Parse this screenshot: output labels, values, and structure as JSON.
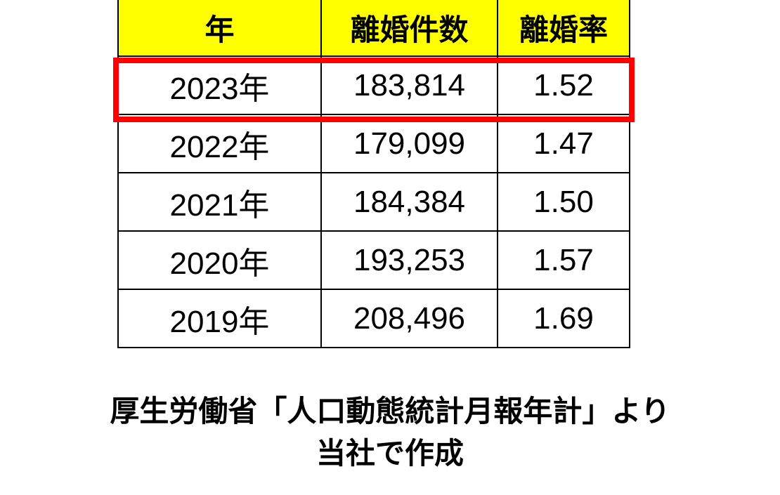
{
  "chart_data": {
    "type": "table",
    "columns": [
      "年",
      "離婚件数",
      "離婚率"
    ],
    "rows": [
      [
        "2023年",
        "183,814",
        "1.52"
      ],
      [
        "2022年",
        "179,099",
        "1.47"
      ],
      [
        "2021年",
        "184,384",
        "1.50"
      ],
      [
        "2020年",
        "193,253",
        "1.57"
      ],
      [
        "2019年",
        "208,496",
        "1.69"
      ]
    ],
    "highlighted_row": "2023年",
    "header_color": "#ffff00",
    "highlight_color": "#ff0000"
  },
  "source_note": {
    "line1": "厚生労働省「人口動態統計月報年計」より",
    "line2": "当社で作成"
  }
}
